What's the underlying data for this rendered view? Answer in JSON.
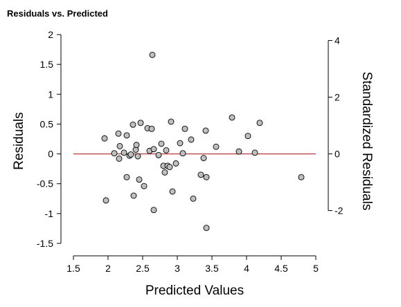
{
  "chart_data": {
    "type": "scatter",
    "title": "Residuals vs. Predicted",
    "xlabel": "Predicted Values",
    "ylabel": "Residuals",
    "y2label": "Standardized Residuals",
    "xlim": [
      1.5,
      5
    ],
    "ylim": [
      -1.5,
      2
    ],
    "y2lim": [
      -2,
      4
    ],
    "xticks": [
      "1.5",
      "2",
      "2.5",
      "3",
      "3.5",
      "4",
      "4.5",
      "5"
    ],
    "yticks": [
      "-1.5",
      "-1",
      "-0.5",
      "0",
      "0.5",
      "1",
      "1.5",
      "2"
    ],
    "y2ticks": [
      "-2",
      "0",
      "2",
      "4"
    ],
    "reference_line_y": 0,
    "colors": {
      "point_fill": "#bfbfbf",
      "point_stroke": "#000000",
      "reference_line": "#b94545"
    },
    "grid": false,
    "legend": "none",
    "points": [
      {
        "x": 1.95,
        "y": 0.26
      },
      {
        "x": 1.97,
        "y": -0.78
      },
      {
        "x": 2.09,
        "y": 0.01
      },
      {
        "x": 2.15,
        "y": 0.34
      },
      {
        "x": 2.17,
        "y": 0.13
      },
      {
        "x": 2.16,
        "y": -0.08
      },
      {
        "x": 2.23,
        "y": 0.02
      },
      {
        "x": 2.27,
        "y": 0.31
      },
      {
        "x": 2.27,
        "y": -0.39
      },
      {
        "x": 2.31,
        "y": -0.03
      },
      {
        "x": 2.33,
        "y": -0.01
      },
      {
        "x": 2.36,
        "y": 0.49
      },
      {
        "x": 2.37,
        "y": -0.7
      },
      {
        "x": 2.4,
        "y": 0.07
      },
      {
        "x": 2.41,
        "y": 0.15
      },
      {
        "x": 2.43,
        "y": -0.04
      },
      {
        "x": 2.45,
        "y": -0.43
      },
      {
        "x": 2.47,
        "y": 0.52
      },
      {
        "x": 2.52,
        "y": -0.54
      },
      {
        "x": 2.57,
        "y": 0.43
      },
      {
        "x": 2.6,
        "y": 0.05
      },
      {
        "x": 2.63,
        "y": 0.42
      },
      {
        "x": 2.64,
        "y": 1.66
      },
      {
        "x": 2.66,
        "y": 0.08
      },
      {
        "x": 2.66,
        "y": -0.94
      },
      {
        "x": 2.73,
        "y": -0.02
      },
      {
        "x": 2.77,
        "y": 0.17
      },
      {
        "x": 2.8,
        "y": -0.2
      },
      {
        "x": 2.82,
        "y": -0.31
      },
      {
        "x": 2.84,
        "y": 0.06
      },
      {
        "x": 2.86,
        "y": -0.2
      },
      {
        "x": 2.89,
        "y": -0.22
      },
      {
        "x": 2.91,
        "y": 0.54
      },
      {
        "x": 2.93,
        "y": -0.63
      },
      {
        "x": 2.98,
        "y": -0.16
      },
      {
        "x": 3.04,
        "y": 0.18
      },
      {
        "x": 3.08,
        "y": 0.01
      },
      {
        "x": 3.11,
        "y": 0.42
      },
      {
        "x": 3.2,
        "y": 0.24
      },
      {
        "x": 3.23,
        "y": -0.75
      },
      {
        "x": 3.34,
        "y": -0.35
      },
      {
        "x": 3.38,
        "y": -0.07
      },
      {
        "x": 3.41,
        "y": 0.39
      },
      {
        "x": 3.42,
        "y": -0.39
      },
      {
        "x": 3.42,
        "y": -1.24
      },
      {
        "x": 3.56,
        "y": 0.12
      },
      {
        "x": 3.79,
        "y": 0.61
      },
      {
        "x": 3.89,
        "y": 0.04
      },
      {
        "x": 4.02,
        "y": 0.3
      },
      {
        "x": 4.12,
        "y": 0.02
      },
      {
        "x": 4.19,
        "y": 0.52
      },
      {
        "x": 4.79,
        "y": -0.39
      }
    ]
  }
}
